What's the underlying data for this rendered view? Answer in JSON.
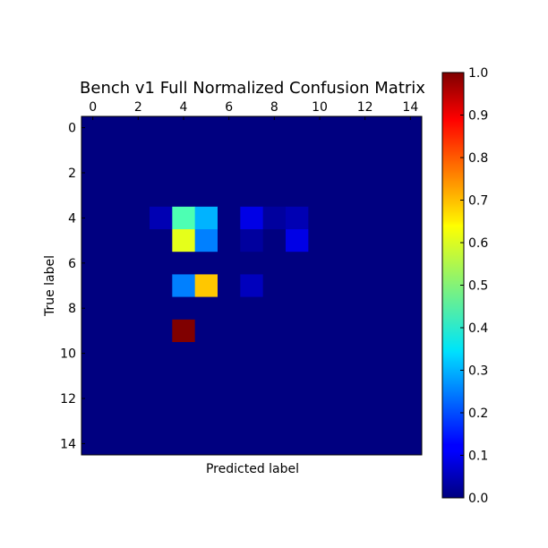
{
  "chart_data": {
    "type": "heatmap",
    "title": "Bench v1 Full Normalized Confusion Matrix",
    "xlabel": "Predicted label",
    "ylabel": "True label",
    "x_ticks": [
      0,
      2,
      4,
      6,
      8,
      10,
      12,
      14
    ],
    "y_ticks": [
      0,
      2,
      4,
      6,
      8,
      10,
      12,
      14
    ],
    "x_tick_position": "top",
    "xlim": [
      -0.5,
      14.5
    ],
    "ylim": [
      14.5,
      -0.5
    ],
    "colormap": "jet",
    "color_range": [
      0.0,
      1.0
    ],
    "colorbar_ticks": [
      "0.0",
      "0.1",
      "0.2",
      "0.3",
      "0.4",
      "0.5",
      "0.6",
      "0.7",
      "0.8",
      "0.9",
      "1.0"
    ],
    "colorbar_position": "right",
    "n_rows": 15,
    "n_cols": 15,
    "nonzero_cells": [
      {
        "row": 4,
        "col": 3,
        "value": 0.05
      },
      {
        "row": 4,
        "col": 4,
        "value": 0.45
      },
      {
        "row": 4,
        "col": 5,
        "value": 0.3
      },
      {
        "row": 4,
        "col": 7,
        "value": 0.1
      },
      {
        "row": 4,
        "col": 8,
        "value": 0.03
      },
      {
        "row": 4,
        "col": 9,
        "value": 0.05
      },
      {
        "row": 5,
        "col": 4,
        "value": 0.6
      },
      {
        "row": 5,
        "col": 5,
        "value": 0.25
      },
      {
        "row": 5,
        "col": 7,
        "value": 0.03
      },
      {
        "row": 5,
        "col": 9,
        "value": 0.1
      },
      {
        "row": 7,
        "col": 4,
        "value": 0.25
      },
      {
        "row": 7,
        "col": 5,
        "value": 0.68
      },
      {
        "row": 7,
        "col": 7,
        "value": 0.06
      },
      {
        "row": 9,
        "col": 4,
        "value": 1.0
      }
    ]
  }
}
